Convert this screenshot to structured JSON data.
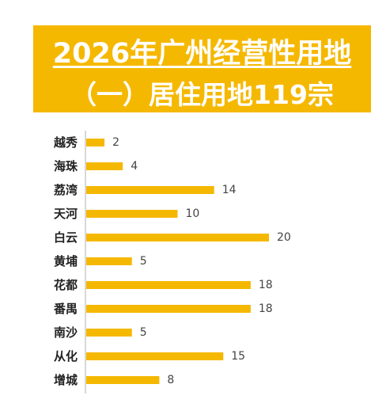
{
  "title": {
    "line1": "2026年广州经营性用地",
    "line2": "（一）居住用地119宗"
  },
  "colors": {
    "accent": "#F5B800",
    "bar": "#F5B800",
    "axis": "#B0B0B0",
    "title_text": "#ffffff"
  },
  "chart_data": {
    "type": "bar",
    "orientation": "horizontal",
    "categories": [
      "越秀",
      "海珠",
      "荔湾",
      "天河",
      "白云",
      "黄埔",
      "花都",
      "番禺",
      "南沙",
      "从化",
      "增城"
    ],
    "values": [
      2,
      4,
      14,
      10,
      20,
      5,
      18,
      18,
      5,
      15,
      8
    ],
    "xlim": [
      0,
      20
    ],
    "grid": false,
    "legend": "none",
    "data_labels": true
  }
}
